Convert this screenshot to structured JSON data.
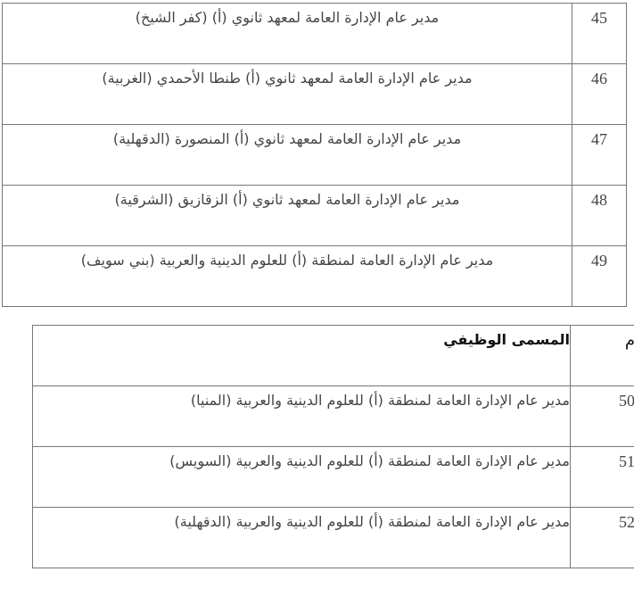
{
  "table1": {
    "rows": [
      {
        "num": "45",
        "title": "مدير عام الإدارة العامة لمعهد ثانوي (أ) (كفر الشيخ)"
      },
      {
        "num": "46",
        "title": "مدير عام الإدارة العامة لمعهد ثانوي (أ) طنطا الأحمدي (الغربية)"
      },
      {
        "num": "47",
        "title": "مدير عام الإدارة العامة لمعهد ثانوي (أ) المنصورة (الدقهلية)"
      },
      {
        "num": "48",
        "title": "مدير عام الإدارة العامة لمعهد ثانوي (أ) الزقازيق (الشرقية)"
      },
      {
        "num": "49",
        "title": "مدير عام الإدارة العامة لمنطقة (أ) للعلوم الدينية والعربية (بني سويف)"
      }
    ]
  },
  "table2": {
    "header": {
      "num": "م",
      "title": "المسمى الوظيفي"
    },
    "rows": [
      {
        "num": "50",
        "title": "مدير عام الإدارة العامة لمنطقة (أ) للعلوم الدينية والعربية (المنيا)"
      },
      {
        "num": "51",
        "title": "مدير عام الإدارة العامة لمنطقة (أ) للعلوم الدينية والعربية (السويس)"
      },
      {
        "num": "52",
        "title": "مدير عام الإدارة العامة لمنطقة (أ) للعلوم الدينية والعربية (الدقهلية)"
      }
    ]
  }
}
